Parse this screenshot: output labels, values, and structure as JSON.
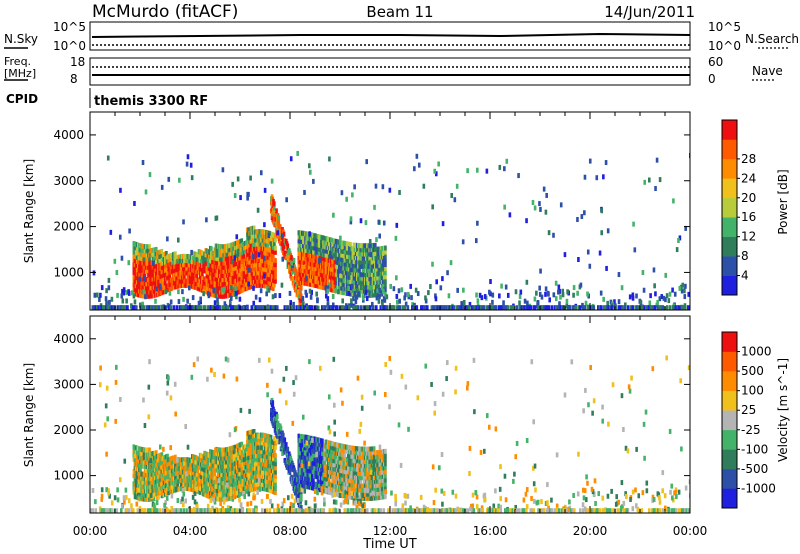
{
  "header": {
    "station": "McMurdo (fitACF)",
    "beam": "Beam 11",
    "date": "14/Jun/2011"
  },
  "aux_panels": {
    "nsky_label": "N.Sky",
    "nsearch_label": "N.Search",
    "nsky_ticks": [
      "10^5",
      "10^0"
    ],
    "nsearch_ticks": [
      "10^5",
      "10^0"
    ],
    "freq_label_1": "Freq.",
    "freq_label_2": "[MHz]",
    "freq_ticks": [
      "18",
      "8"
    ],
    "nave_label": "Nave",
    "nave_ticks": [
      "60",
      "0"
    ],
    "cpid_label": "CPID",
    "cpid_text": "themis 3300 RF"
  },
  "chart_data": [
    {
      "type": "heatmap",
      "quantity": "Power",
      "xlabel": "Time UT",
      "ylabel": "Slant Range [km]",
      "x_ticks": [
        "00:00",
        "04:00",
        "08:00",
        "12:00",
        "16:00",
        "20:00",
        "00:00"
      ],
      "y_ticks": [
        1000,
        2000,
        3000,
        4000
      ],
      "xlim_hours": [
        0,
        24
      ],
      "ylim_km": [
        180,
        4500
      ],
      "colorbar_label": "Power [dB]",
      "colorbar_ticks": [
        "4",
        "8",
        "12",
        "16",
        "20",
        "24",
        "28"
      ],
      "colorbar_range": [
        0,
        32
      ],
      "colorscale": [
        "#1f1fe0",
        "#2c4fa8",
        "#2f7d5a",
        "#43b36a",
        "#b8cc3b",
        "#f0c01c",
        "#ff8c00",
        "#ff5a00",
        "#ee1010"
      ]
    },
    {
      "type": "heatmap",
      "quantity": "Velocity",
      "xlabel": "Time UT",
      "ylabel": "Slant Range [km]",
      "x_ticks": [
        "00:00",
        "04:00",
        "08:00",
        "12:00",
        "16:00",
        "20:00",
        "00:00"
      ],
      "y_ticks": [
        1000,
        2000,
        3000,
        4000
      ],
      "xlim_hours": [
        0,
        24
      ],
      "ylim_km": [
        180,
        4500
      ],
      "colorbar_label": "Velocity [m s^-1]",
      "colorbar_ticks": [
        "1000",
        "500",
        "100",
        "25",
        "-25",
        "-100",
        "-500",
        "-1000"
      ],
      "colorscale": [
        "#1f1fe0",
        "#2c4fa8",
        "#2f7d5a",
        "#43b36a",
        "#b4b4b4",
        "#f0c01c",
        "#ff8c00",
        "#ff5a00",
        "#ee1010"
      ]
    }
  ]
}
